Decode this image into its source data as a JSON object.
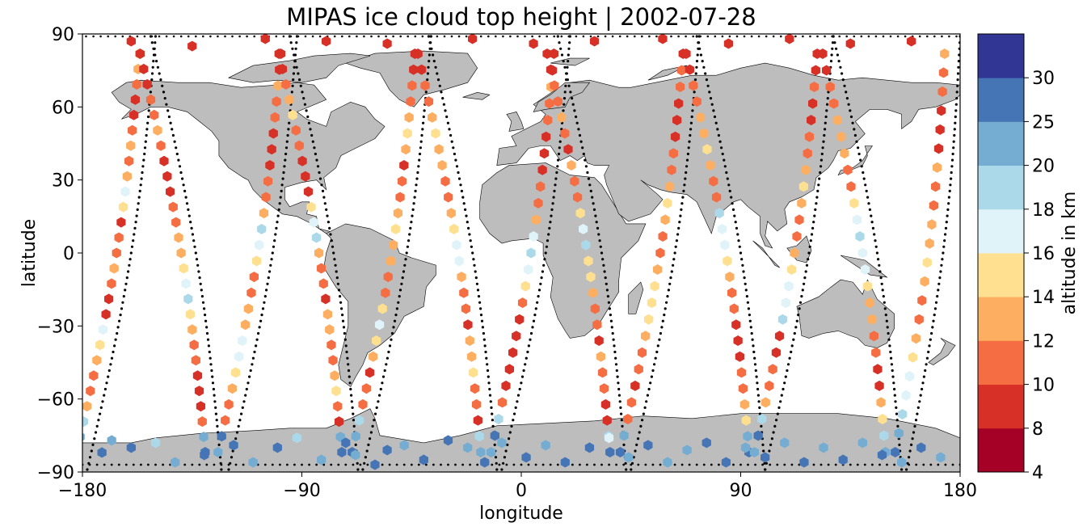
{
  "chart_data": {
    "type": "scatter",
    "title": "MIPAS ice cloud top height | 2002-07-28",
    "xlabel": "longitude",
    "ylabel": "latitude",
    "xlim": [
      -180,
      180
    ],
    "ylim": [
      -90,
      90
    ],
    "xticks": [
      -180,
      -90,
      0,
      90,
      180
    ],
    "yticks": [
      -90,
      -60,
      -30,
      0,
      30,
      60,
      90
    ],
    "xtick_labels": [
      "−180",
      "−90",
      "0",
      "90",
      "180"
    ],
    "ytick_labels": [
      "−90",
      "−60",
      "−30",
      "0",
      "30",
      "60",
      "90"
    ],
    "grid": false,
    "colorbar": {
      "label": "altitude in km",
      "bounds": [
        4,
        8,
        10,
        12,
        14,
        16,
        18,
        20,
        25,
        30
      ],
      "tick_labels": [
        "4",
        "8",
        "10",
        "12",
        "14",
        "16",
        "18",
        "20",
        "25",
        "30"
      ],
      "colors": [
        "#a50026",
        "#d73027",
        "#f46d43",
        "#fdae61",
        "#fee090",
        "#e0f3f8",
        "#abd9e9",
        "#74add1",
        "#4575b4",
        "#313695"
      ]
    },
    "colors": {
      "land": "#bdbdbd",
      "coast": "#000000",
      "track": "#000000"
    },
    "tracks": [
      {
        "start": [
          -178,
          -89
        ],
        "end": [
          -150,
          89
        ],
        "values": [
          25,
          20,
          18,
          12,
          11,
          10,
          12,
          14,
          16,
          9,
          8,
          10,
          12,
          11,
          10,
          8,
          14,
          16,
          12,
          10,
          12,
          11,
          9,
          8,
          10,
          12,
          14
        ]
      },
      {
        "start": [
          -152,
          89
        ],
        "end": [
          -123,
          -89
        ],
        "values": [
          9,
          8,
          9,
          10,
          11,
          12,
          10,
          9,
          8,
          9,
          10,
          11,
          12,
          13,
          14,
          16,
          18,
          14,
          12,
          11,
          10,
          9,
          8,
          9,
          10,
          20,
          25
        ]
      },
      {
        "start": [
          -120,
          -89
        ],
        "end": [
          -92,
          89
        ],
        "values": [
          20,
          25,
          11,
          10,
          12,
          14,
          16,
          17,
          13,
          12,
          11,
          10,
          14,
          16,
          18,
          12,
          11,
          10,
          9,
          8,
          9,
          10,
          11,
          12,
          9,
          8
        ]
      },
      {
        "start": [
          -95,
          89
        ],
        "end": [
          -67,
          -89
        ],
        "values": [
          8,
          9,
          10,
          12,
          14,
          11,
          10,
          9,
          8,
          9,
          14,
          16,
          18,
          12,
          11,
          10,
          9,
          12,
          13,
          11,
          10,
          12,
          14,
          10,
          9,
          20,
          25
        ]
      },
      {
        "start": [
          -65,
          -89
        ],
        "end": [
          -37,
          89
        ],
        "values": [
          25,
          20,
          18,
          11,
          10,
          9,
          12,
          14,
          16,
          15,
          11,
          10,
          12,
          13,
          14,
          12,
          11,
          10,
          9,
          12,
          14,
          13,
          11,
          10,
          8,
          9
        ]
      },
      {
        "start": [
          -38,
          89
        ],
        "end": [
          -10,
          -89
        ],
        "values": [
          9,
          8,
          10,
          11,
          12,
          14,
          13,
          12,
          11,
          10,
          12,
          14,
          16,
          17,
          12,
          11,
          10,
          9,
          12,
          13,
          14,
          11,
          10,
          9,
          18,
          20
        ]
      },
      {
        "start": [
          -8,
          -89
        ],
        "end": [
          20,
          89
        ],
        "values": [
          20,
          25,
          18,
          10,
          9,
          8,
          9,
          8,
          9,
          10,
          14,
          16,
          18,
          17,
          12,
          11,
          10,
          9,
          8,
          9,
          10,
          11,
          12,
          9,
          8
        ]
      },
      {
        "start": [
          15,
          89
        ],
        "end": [
          43,
          -89
        ],
        "values": [
          8,
          9,
          10,
          11,
          12,
          10,
          9,
          12,
          11,
          10,
          14,
          16,
          18,
          15,
          14,
          12,
          11,
          10,
          9,
          12,
          11,
          10,
          9,
          8,
          18,
          25
        ]
      },
      {
        "start": [
          45,
          -89
        ],
        "end": [
          73,
          89
        ],
        "values": [
          25,
          20,
          11,
          10,
          9,
          10,
          11,
          12,
          14,
          15,
          14,
          12,
          11,
          10,
          12,
          14,
          12,
          11,
          10,
          9,
          8,
          9,
          10,
          11,
          8
        ]
      },
      {
        "start": [
          72,
          89
        ],
        "end": [
          100,
          -89
        ],
        "values": [
          9,
          8,
          10,
          11,
          12,
          13,
          14,
          12,
          11,
          10,
          18,
          17,
          16,
          14,
          12,
          11,
          10,
          9,
          8,
          9,
          10,
          11,
          12,
          14,
          20,
          25
        ]
      },
      {
        "start": [
          100,
          -89
        ],
        "end": [
          128,
          89
        ],
        "values": [
          20,
          25,
          18,
          12,
          11,
          10,
          9,
          8,
          18,
          17,
          16,
          14,
          12,
          11,
          10,
          13,
          14,
          12,
          11,
          10,
          9,
          8,
          10,
          9,
          8
        ]
      },
      {
        "start": [
          128,
          89
        ],
        "end": [
          156,
          -89
        ],
        "values": [
          8,
          9,
          10,
          11,
          12,
          13,
          12,
          11,
          10,
          14,
          16,
          18,
          17,
          16,
          14,
          13,
          12,
          11,
          10,
          9,
          8,
          12,
          14,
          18,
          20
        ]
      },
      {
        "start": [
          158,
          -89
        ],
        "end": [
          180,
          89
        ],
        "values": [
          25,
          20,
          18,
          16,
          17,
          14,
          12,
          11,
          10,
          12,
          14,
          13,
          12,
          11,
          10,
          12,
          9,
          8,
          9,
          10,
          11,
          12
        ]
      }
    ],
    "south_points": [
      [
        -172,
        -82,
        25
      ],
      [
        -168,
        -77,
        20
      ],
      [
        -160,
        -80,
        25
      ],
      [
        -150,
        -78,
        18
      ],
      [
        -142,
        -86,
        20
      ],
      [
        -130,
        -83,
        25
      ],
      [
        -118,
        -79,
        25
      ],
      [
        -110,
        -86,
        20
      ],
      [
        -100,
        -80,
        25
      ],
      [
        -92,
        -76,
        18
      ],
      [
        -82,
        -85,
        20
      ],
      [
        -72,
        -78,
        25
      ],
      [
        -68,
        -83,
        20
      ],
      [
        -60,
        -87,
        25
      ],
      [
        -55,
        -81,
        25
      ],
      [
        -48,
        -79,
        20
      ],
      [
        -40,
        -85,
        25
      ],
      [
        -30,
        -77,
        25
      ],
      [
        -22,
        -80,
        20
      ],
      [
        -15,
        -86,
        25
      ],
      [
        -8,
        -78,
        20
      ],
      [
        2,
        -84,
        25
      ],
      [
        10,
        -79,
        20
      ],
      [
        18,
        -86,
        25
      ],
      [
        28,
        -80,
        25
      ],
      [
        36,
        -76,
        16
      ],
      [
        44,
        -84,
        20
      ],
      [
        52,
        -79,
        25
      ],
      [
        60,
        -86,
        20
      ],
      [
        68,
        -81,
        20
      ],
      [
        76,
        -78,
        25
      ],
      [
        84,
        -86,
        25
      ],
      [
        92,
        -80,
        20
      ],
      [
        100,
        -84,
        25
      ],
      [
        108,
        -78,
        20
      ],
      [
        116,
        -86,
        25
      ],
      [
        124,
        -80,
        20
      ],
      [
        132,
        -85,
        25
      ],
      [
        140,
        -78,
        20
      ],
      [
        148,
        -83,
        25
      ],
      [
        156,
        -86,
        20
      ],
      [
        164,
        -80,
        25
      ],
      [
        172,
        -84,
        20
      ]
    ],
    "north_points": [
      [
        -160,
        87,
        8
      ],
      [
        -135,
        85,
        8
      ],
      [
        -105,
        88,
        9
      ],
      [
        -80,
        87,
        8
      ],
      [
        -55,
        86,
        8
      ],
      [
        -20,
        88,
        9
      ],
      [
        5,
        86,
        8
      ],
      [
        30,
        87,
        8
      ],
      [
        58,
        88,
        9
      ],
      [
        85,
        86,
        8
      ],
      [
        110,
        88,
        8
      ],
      [
        135,
        86,
        9
      ],
      [
        160,
        87,
        8
      ]
    ]
  }
}
